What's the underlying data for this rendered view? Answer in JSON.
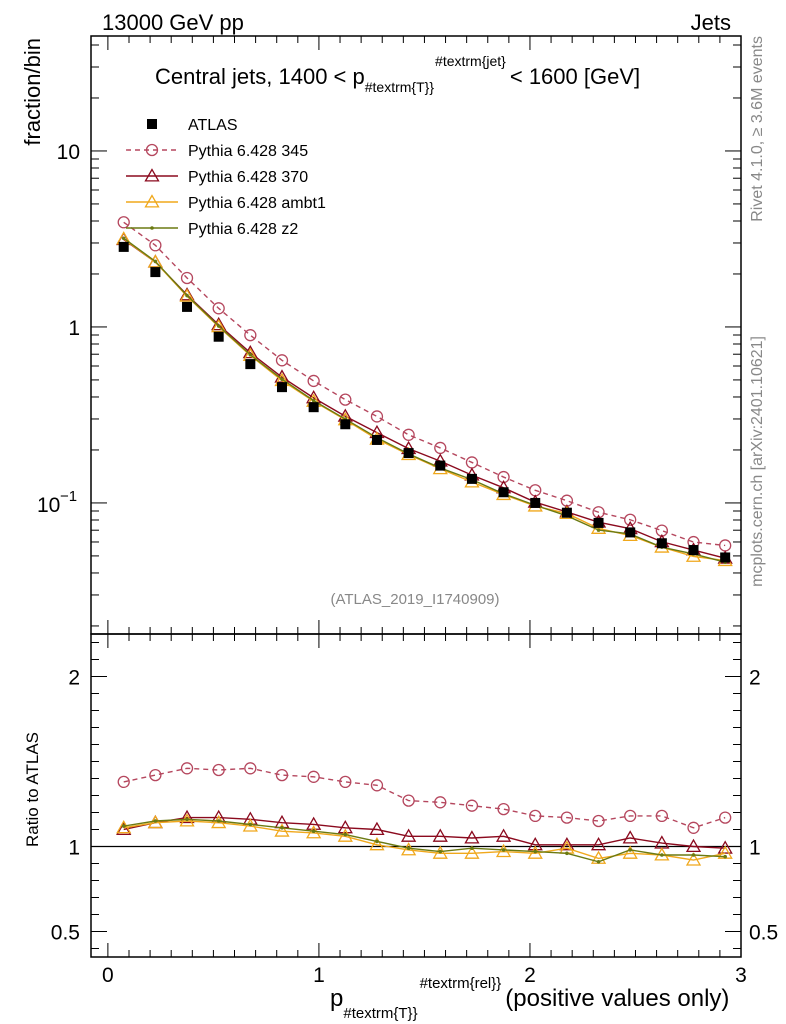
{
  "header": {
    "left": "13000 GeV pp",
    "right": "Jets"
  },
  "side_labels": {
    "rivet": "Rivet 4.1.0, ≥ 3.6M events",
    "mcplots": "mcplots.cern.ch [arXiv:2401.10621]"
  },
  "analysis_id": "(ATLAS_2019_I1740909)",
  "colors": {
    "atlas": "#000000",
    "p345": "#b5475e",
    "p370": "#8b0a1e",
    "ambt1": "#f0a81c",
    "z2": "#6b7a12"
  },
  "chart_data": {
    "type": "line",
    "title": "Central jets, 1400 < p_{#textrm{T}}^{#textrm{jet}} < 1600 [GeV]",
    "title_parts": {
      "pre": "Central jets, 1400 < p",
      "sub": "#textrm{T}",
      "sup": "#textrm{jet}",
      "post": "< 1600 [GeV]"
    },
    "xlabel_parts": {
      "main": "p",
      "sub": "#textrm{T}",
      "sup": "#textrm{rel}",
      "post": "(positive values only)"
    },
    "ylabel": "fraction/bin",
    "ratio_ylabel": "Ratio to ATLAS",
    "xlim": [
      -0.08,
      3.0
    ],
    "ylim": [
      0.018,
      45
    ],
    "ratio_ylim": [
      0.35,
      2.25
    ],
    "yscale": "log",
    "x_ticks": [
      "0",
      "1",
      "2",
      "3"
    ],
    "y_ticks": [
      "1",
      "10"
    ],
    "y_tick_exp": {
      "base": "10",
      "exp": "−1"
    },
    "ratio_ticks": [
      "0.5",
      "1",
      "2"
    ],
    "x": [
      0.075,
      0.225,
      0.375,
      0.525,
      0.675,
      0.825,
      0.975,
      1.125,
      1.275,
      1.425,
      1.575,
      1.725,
      1.875,
      2.025,
      2.175,
      2.325,
      2.475,
      2.625,
      2.775,
      2.925
    ],
    "series": [
      {
        "name": "ATLAS",
        "key": "atlas",
        "marker": "square",
        "values": [
          2.85,
          2.05,
          1.3,
          0.88,
          0.615,
          0.455,
          0.35,
          0.28,
          0.228,
          0.192,
          0.163,
          0.137,
          0.115,
          0.1,
          0.088,
          0.077,
          0.068,
          0.059,
          0.054,
          0.049
        ]
      },
      {
        "name": "Pythia 6.428 345",
        "key": "p345",
        "marker": "circle",
        "ratio": [
          1.38,
          1.42,
          1.46,
          1.45,
          1.46,
          1.42,
          1.41,
          1.38,
          1.36,
          1.27,
          1.26,
          1.24,
          1.22,
          1.18,
          1.17,
          1.15,
          1.18,
          1.18,
          1.11,
          1.17
        ]
      },
      {
        "name": "Pythia 6.428 370",
        "key": "p370",
        "marker": "triangle",
        "ratio": [
          1.1,
          1.14,
          1.17,
          1.17,
          1.16,
          1.14,
          1.13,
          1.11,
          1.1,
          1.06,
          1.06,
          1.05,
          1.06,
          1.01,
          1.01,
          1.01,
          1.05,
          1.02,
          1.0,
          0.99
        ]
      },
      {
        "name": "Pythia 6.428 ambt1",
        "key": "ambt1",
        "marker": "triangle",
        "ratio": [
          1.11,
          1.14,
          1.15,
          1.14,
          1.12,
          1.09,
          1.08,
          1.06,
          1.01,
          0.98,
          0.96,
          0.96,
          0.97,
          0.96,
          0.99,
          0.93,
          0.96,
          0.95,
          0.92,
          0.96
        ]
      },
      {
        "name": "Pythia 6.428 z2",
        "key": "z2",
        "marker": "dot",
        "ratio": [
          1.12,
          1.15,
          1.16,
          1.15,
          1.13,
          1.11,
          1.09,
          1.07,
          1.03,
          0.99,
          0.97,
          0.99,
          0.98,
          0.97,
          0.96,
          0.91,
          0.98,
          0.95,
          0.95,
          0.94
        ]
      }
    ]
  }
}
